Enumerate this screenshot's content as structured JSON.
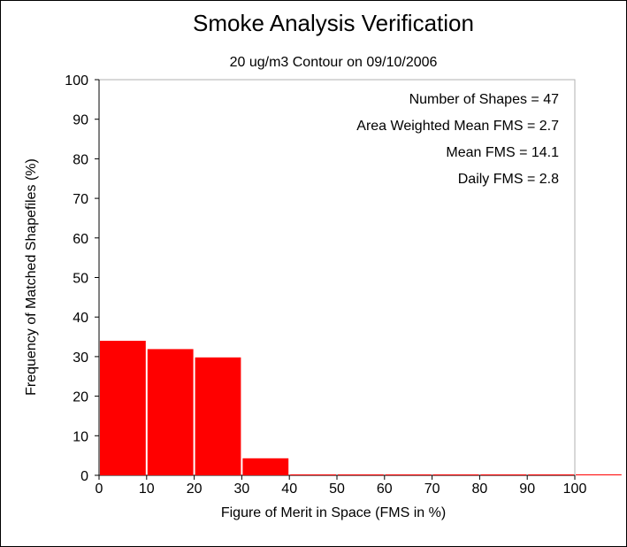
{
  "chart_data": {
    "type": "bar",
    "title": "Smoke Analysis Verification",
    "subtitle": "20 ug/m3 Contour on 09/10/2006",
    "xlabel": "Figure of Merit in Space (FMS in %)",
    "ylabel": "Frequency of Matched Shapefiles (%)",
    "xlim": [
      0,
      100
    ],
    "ylim": [
      0,
      100
    ],
    "xticks": [
      "0",
      "10",
      "20",
      "30",
      "40",
      "50",
      "60",
      "70",
      "80",
      "90",
      "100"
    ],
    "yticks": [
      "0",
      "10",
      "20",
      "30",
      "40",
      "50",
      "60",
      "70",
      "80",
      "90",
      "100"
    ],
    "bin_width": 10,
    "bins": [
      0,
      10,
      20,
      30,
      40,
      50,
      60,
      70,
      80,
      90,
      100
    ],
    "values": [
      34.0,
      31.9,
      29.8,
      4.3,
      0,
      0,
      0,
      0,
      0,
      0,
      0
    ],
    "bar_color": "#ff0000",
    "grid": false,
    "stats": [
      "Number of Shapes = 47",
      "Area Weighted Mean FMS = 2.7",
      "Mean FMS = 14.1",
      "Daily FMS = 2.8"
    ]
  }
}
